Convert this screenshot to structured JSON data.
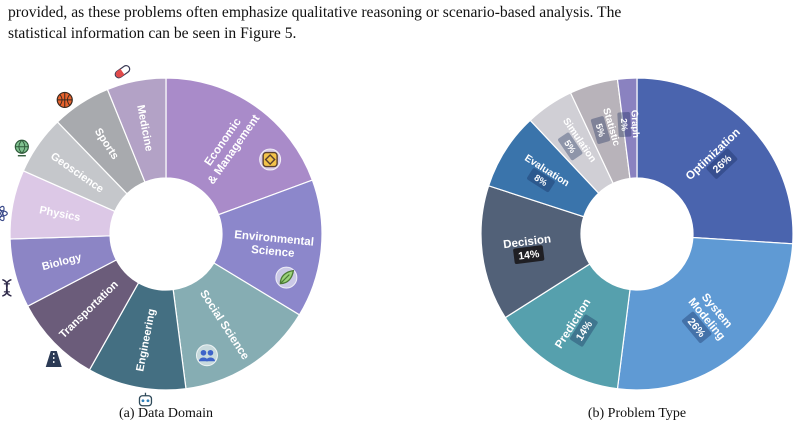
{
  "paragraph": {
    "line1": "provided, as these problems often emphasize qualitative reasoning or scenario-based analysis. The",
    "line2": "statistical information can be seen in Figure 5."
  },
  "captions": {
    "a": "(a) Data Domain",
    "b": "(b) Problem Type"
  },
  "chart_data": [
    {
      "type": "pie",
      "donut": true,
      "title": "",
      "slices": [
        {
          "label": "Economic & Management",
          "lines": [
            "Economic",
            "& Management"
          ],
          "value": 19,
          "color": "#a98bc9",
          "icon": "coin-icon"
        },
        {
          "label": "Environmental Science",
          "lines": [
            "Environmental",
            "Science"
          ],
          "value": 14,
          "color": "#8c87cb",
          "icon": "leaf-icon"
        },
        {
          "label": "Social Science",
          "lines": [
            "Social Science"
          ],
          "value": 14,
          "color": "#86adb3",
          "icon": "people-icon"
        },
        {
          "label": "Engineering",
          "lines": [
            "Engineering"
          ],
          "value": 10,
          "color": "#446f82",
          "icon": "robot-icon"
        },
        {
          "label": "Transportation",
          "lines": [
            "Transportation"
          ],
          "value": 9,
          "color": "#6b5c7a",
          "icon": "road-icon"
        },
        {
          "label": "Biology",
          "lines": [
            "Biology"
          ],
          "value": 7,
          "color": "#8c85c5",
          "icon": "dna-icon"
        },
        {
          "label": "Physics",
          "lines": [
            "Physics"
          ],
          "value": 7,
          "color": "#dcc8e6",
          "icon": "atom-icon"
        },
        {
          "label": "Geoscience",
          "lines": [
            "Geoscience"
          ],
          "value": 6,
          "color": "#c5c7cb",
          "icon": "globe-icon"
        },
        {
          "label": "Sports",
          "lines": [
            "Sports"
          ],
          "value": 6,
          "color": "#a8aaae",
          "icon": "basketball-icon"
        },
        {
          "label": "Medicine",
          "lines": [
            "Medicine"
          ],
          "value": 6,
          "color": "#b3a2c6",
          "icon": "pill-icon"
        }
      ]
    },
    {
      "type": "pie",
      "donut": true,
      "title": "",
      "slices": [
        {
          "label": "Optimization",
          "lines": [
            "Optimization"
          ],
          "value": 26,
          "pct": "26%",
          "color": "#4a64ae"
        },
        {
          "label": "System Modeling",
          "lines": [
            "System",
            "Modeling"
          ],
          "value": 26,
          "pct": "26%",
          "color": "#5f9ad4"
        },
        {
          "label": "Prediction",
          "lines": [
            "Prediction"
          ],
          "value": 14,
          "pct": "14%",
          "color": "#56a0ad"
        },
        {
          "label": "Decision",
          "lines": [
            "Decision"
          ],
          "value": 14,
          "pct": "14%",
          "color": "#526178"
        },
        {
          "label": "Evaluation",
          "lines": [
            "Evaluation"
          ],
          "value": 8,
          "pct": "8%",
          "color": "#3a74ab"
        },
        {
          "label": "Simulation",
          "lines": [
            "Simulation"
          ],
          "value": 5,
          "pct": "5%",
          "color": "#d0cfd5"
        },
        {
          "label": "Statistic",
          "lines": [
            "Statistic"
          ],
          "value": 5,
          "pct": "5%",
          "color": "#b8b3ba"
        },
        {
          "label": "Graph",
          "lines": [
            "Graph"
          ],
          "value": 2,
          "pct": "2%",
          "color": "#8a82c0"
        }
      ]
    }
  ]
}
